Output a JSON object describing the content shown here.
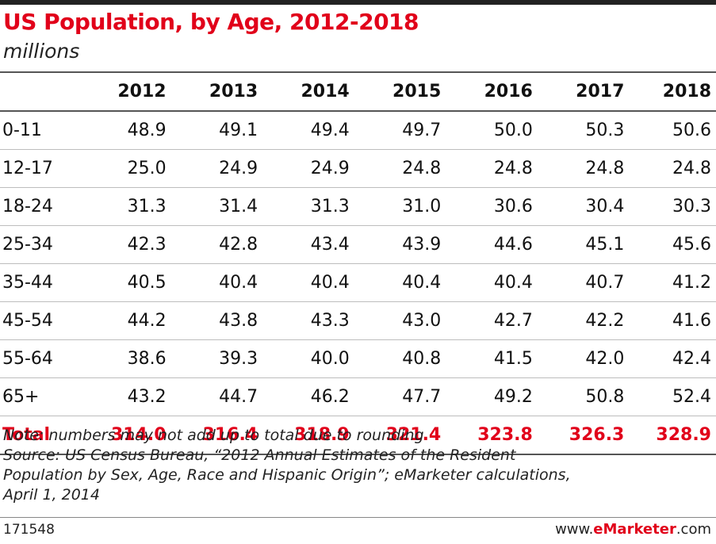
{
  "chart_data": {
    "type": "table",
    "title": "US Population, by Age, 2012-2018",
    "subtitle": "millions",
    "columns": [
      "2012",
      "2013",
      "2014",
      "2015",
      "2016",
      "2017",
      "2018"
    ],
    "rows": [
      {
        "label": "0-11",
        "values": [
          "48.9",
          "49.1",
          "49.4",
          "49.7",
          "50.0",
          "50.3",
          "50.6"
        ]
      },
      {
        "label": "12-17",
        "values": [
          "25.0",
          "24.9",
          "24.9",
          "24.8",
          "24.8",
          "24.8",
          "24.8"
        ]
      },
      {
        "label": "18-24",
        "values": [
          "31.3",
          "31.4",
          "31.3",
          "31.0",
          "30.6",
          "30.4",
          "30.3"
        ]
      },
      {
        "label": "25-34",
        "values": [
          "42.3",
          "42.8",
          "43.4",
          "43.9",
          "44.6",
          "45.1",
          "45.6"
        ]
      },
      {
        "label": "35-44",
        "values": [
          "40.5",
          "40.4",
          "40.4",
          "40.4",
          "40.4",
          "40.7",
          "41.2"
        ]
      },
      {
        "label": "45-54",
        "values": [
          "44.2",
          "43.8",
          "43.3",
          "43.0",
          "42.7",
          "42.2",
          "41.6"
        ]
      },
      {
        "label": "55-64",
        "values": [
          "38.6",
          "39.3",
          "40.0",
          "40.8",
          "41.5",
          "42.0",
          "42.4"
        ]
      },
      {
        "label": "65+",
        "values": [
          "43.2",
          "44.7",
          "46.2",
          "47.7",
          "49.2",
          "50.8",
          "52.4"
        ]
      }
    ],
    "total": {
      "label": "Total",
      "values": [
        "314.0",
        "316.4",
        "318.9",
        "321.4",
        "323.8",
        "326.3",
        "328.9"
      ]
    }
  },
  "notes": {
    "note": "Note: numbers may not add up to total due to rounding",
    "source_lines": [
      "Source: US Census Bureau, “2012 Annual Estimates of the Resident",
      "Population by Sex, Age, Race and Hispanic Origin”; eMarketer calculations,",
      "April 1, 2014"
    ]
  },
  "footer": {
    "chart_id": "171548",
    "brand_prefix": "www.",
    "brand_name": "eMarketer",
    "brand_suffix": ".com"
  },
  "colors": {
    "accent": "#e1001a",
    "text": "#111111",
    "rule": "#555555"
  }
}
